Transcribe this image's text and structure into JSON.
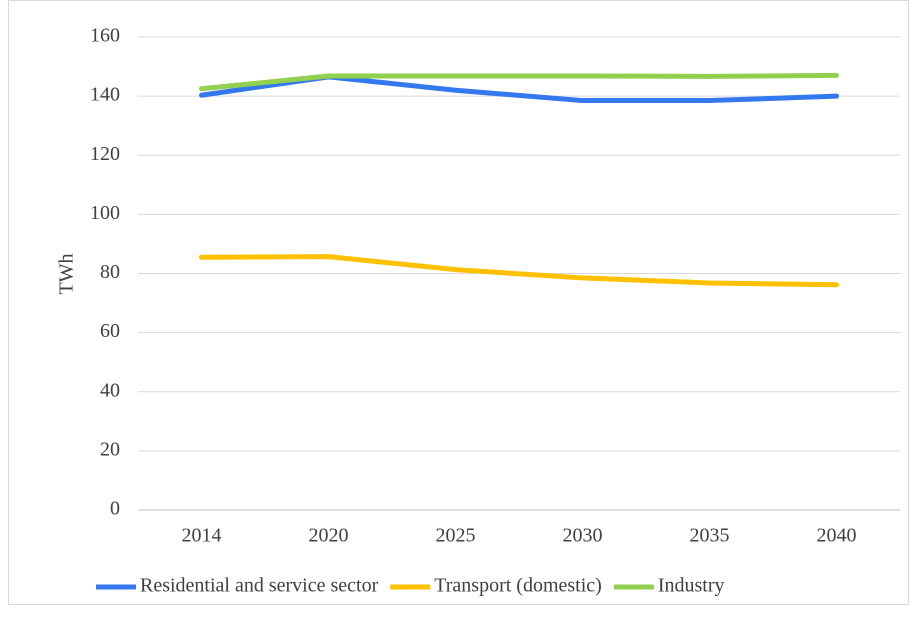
{
  "chart_data": {
    "type": "line",
    "y_label": "TWh",
    "categories": [
      "2014",
      "2020",
      "2025",
      "2030",
      "2035",
      "2040"
    ],
    "series": [
      {
        "name": "Residential and service sector",
        "color": "#3478f0",
        "values": [
          140.3,
          146.5,
          142,
          138.5,
          138.5,
          140
        ]
      },
      {
        "name": "Transport (domestic)",
        "color": "#ffc000",
        "values": [
          85.5,
          85.7,
          81.3,
          78.5,
          76.8,
          76.2
        ]
      },
      {
        "name": "Industry",
        "color": "#92d050",
        "values": [
          142.5,
          146.8,
          146.8,
          146.8,
          146.7,
          147
        ]
      }
    ],
    "ylim": [
      0,
      160
    ],
    "yticks": [
      0,
      20,
      40,
      60,
      80,
      100,
      120,
      140,
      160
    ],
    "grid": true,
    "legend": "bottom"
  }
}
